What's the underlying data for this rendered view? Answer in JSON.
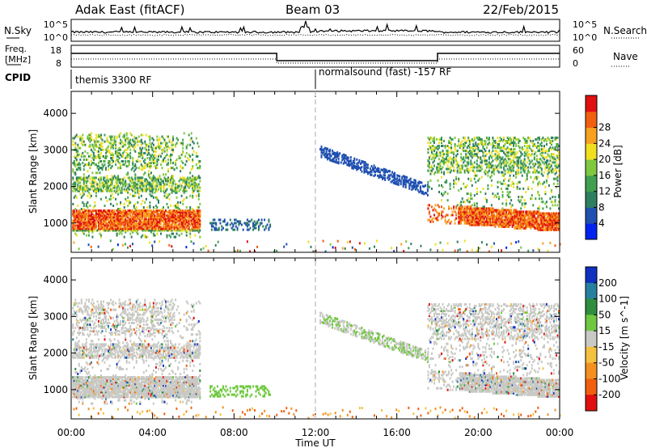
{
  "header": {
    "station": "Adak East (fitACF)",
    "beam": "Beam 03",
    "date": "22/Feb/2015"
  },
  "noise_panel": {
    "left_label": "N.Sky",
    "right_label": "N.Search",
    "left_ticks": [
      "10^5",
      "10^0"
    ],
    "right_ticks": [
      "10^5",
      "10^0"
    ]
  },
  "freq_panel": {
    "left_label_1": "Freq.",
    "left_label_2": "[MHz]",
    "right_label": "Nave",
    "left_ticks": [
      "18",
      "8"
    ],
    "right_ticks": [
      "60",
      "0"
    ]
  },
  "cpid": {
    "label": "CPID",
    "segments": [
      {
        "text": "themis 3300 RF",
        "start_hour": 0
      },
      {
        "text": "normalsound (fast) -157 RF",
        "start_hour": 12
      }
    ]
  },
  "chart_data": [
    {
      "type": "heatmap",
      "title": "",
      "ylabel": "Slant Range [km]",
      "xlabel": "Time UT",
      "x_range_hours": [
        0,
        24
      ],
      "ylim": [
        200,
        4600
      ],
      "yticks": [
        "1000",
        "2000",
        "3000",
        "4000"
      ],
      "xticks": [
        "00:00",
        "04:00",
        "08:00",
        "12:00",
        "16:00",
        "20:00",
        "00:00"
      ],
      "colorbar": {
        "label": "Power [dB]",
        "ticks": [
          "4",
          "8",
          "12",
          "16",
          "20",
          "24",
          "28"
        ],
        "colors": [
          "#0022ee",
          "#2050b0",
          "#2e7e60",
          "#40a050",
          "#80c840",
          "#f0e020",
          "#f8a020",
          "#f06010",
          "#e01010"
        ]
      }
    },
    {
      "type": "heatmap",
      "title": "",
      "ylabel": "Slant Range [km]",
      "xlabel": "Time UT",
      "x_range_hours": [
        0,
        24
      ],
      "ylim": [
        200,
        4600
      ],
      "yticks": [
        "1000",
        "2000",
        "3000",
        "4000"
      ],
      "xticks": [
        "00:00",
        "04:00",
        "08:00",
        "12:00",
        "16:00",
        "20:00",
        "00:00"
      ],
      "colorbar": {
        "label": "Velocity [m s^-1]",
        "ticks": [
          "200",
          "100",
          "50",
          "15",
          "-15",
          "-50",
          "-100",
          "-200"
        ],
        "colors": [
          "#1030c0",
          "#2880a0",
          "#2e8e3e",
          "#70c840",
          "#c8c8c4",
          "#f4c040",
          "#f49020",
          "#f06010",
          "#e01010"
        ]
      }
    }
  ],
  "x_axis_title": "Time UT"
}
